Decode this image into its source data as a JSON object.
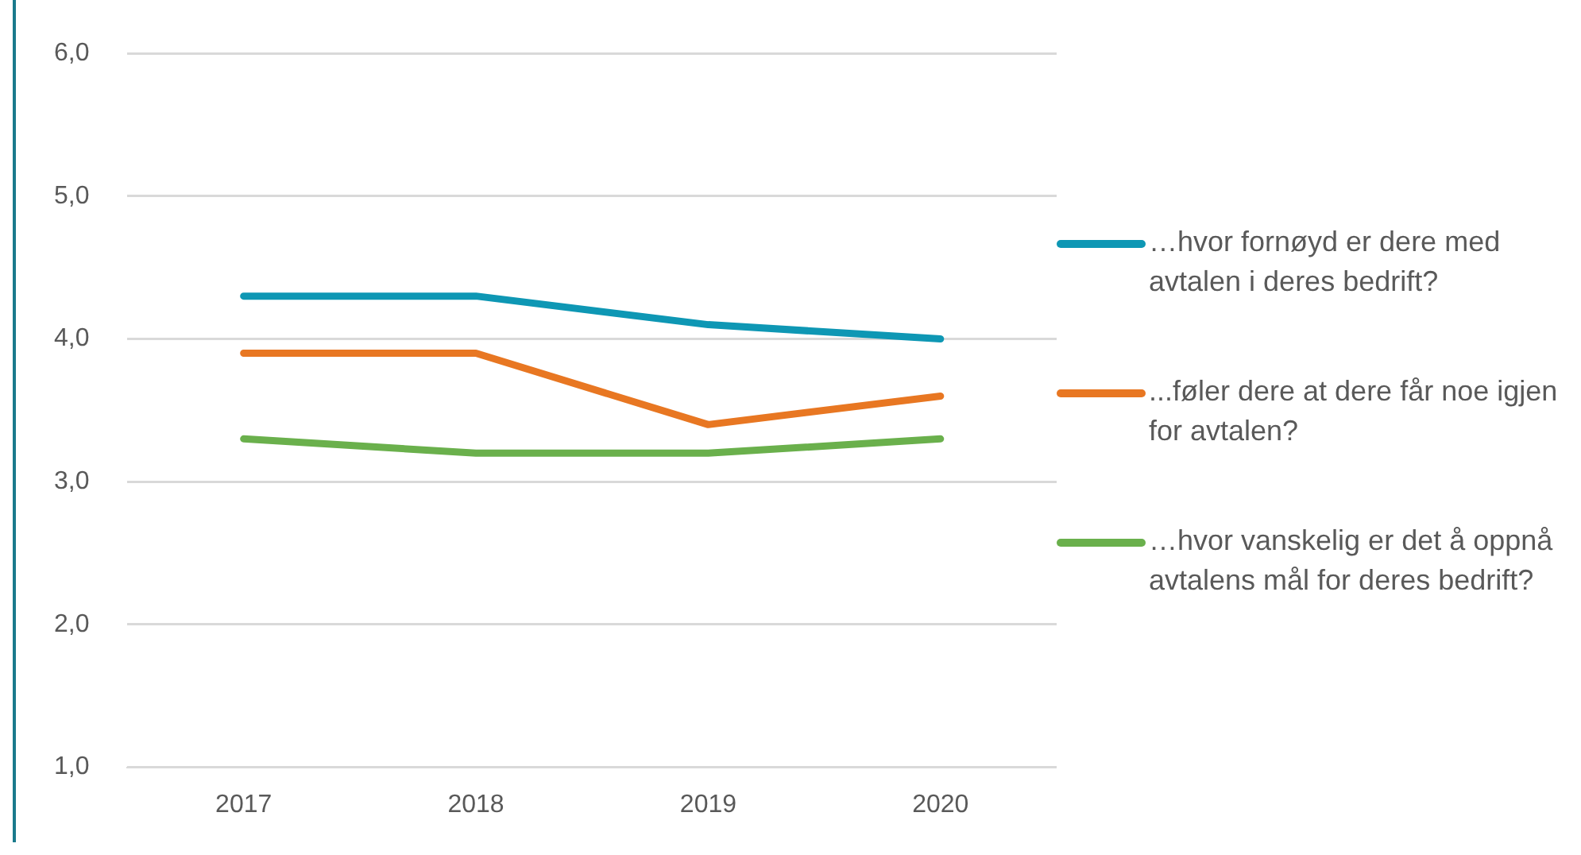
{
  "chart_data": {
    "type": "line",
    "categories": [
      "2017",
      "2018",
      "2019",
      "2020"
    ],
    "series": [
      {
        "name": "…hvor fornøyd er dere med avtalen i deres bedrift?",
        "color": "#0e97b4",
        "values": [
          4.3,
          4.3,
          4.1,
          4.0
        ]
      },
      {
        "name": "...føler dere at dere får noe igjen for avtalen?",
        "color": "#e87722",
        "values": [
          3.9,
          3.9,
          3.4,
          3.6
        ]
      },
      {
        "name": "…hvor vanskelig er det å oppnå avtalens mål for deres bedrift?",
        "color": "#6ab04c",
        "values": [
          3.3,
          3.2,
          3.2,
          3.3
        ]
      }
    ],
    "ylim": [
      1,
      6
    ],
    "yticks": [
      {
        "value": 1,
        "label": "1,0"
      },
      {
        "value": 2,
        "label": "2,0"
      },
      {
        "value": 3,
        "label": "3,0"
      },
      {
        "value": 4,
        "label": "4,0"
      },
      {
        "value": 5,
        "label": "5,0"
      },
      {
        "value": 6,
        "label": "6,0"
      }
    ],
    "grid": "y",
    "legend": "right",
    "marker": "none",
    "line_style": "solid"
  }
}
